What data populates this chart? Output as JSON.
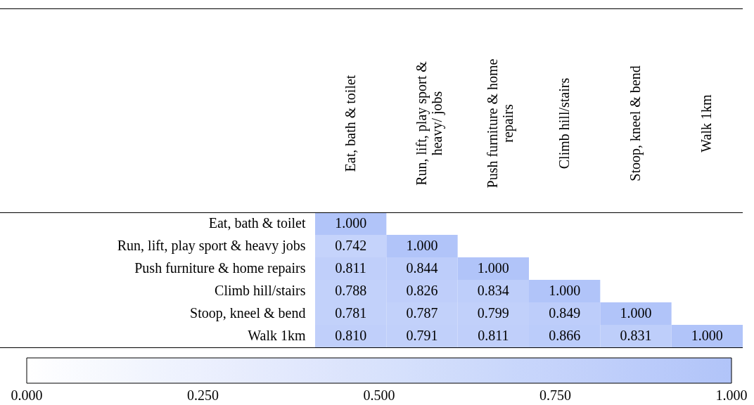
{
  "chart_data": {
    "type": "heatmap",
    "categories": [
      "Eat, bath & toilet",
      "Run, lift, play sport & heavy/ jobs",
      "Push furniture & home repairs",
      "Climb hill/stairs",
      "Stoop, kneel & bend",
      "Walk 1km"
    ],
    "y_categories": [
      "Eat, bath & toilet",
      "Run, lift, play sport & heavy jobs",
      "Push furniture & home repairs",
      "Climb hill/stairs",
      "Stoop, kneel & bend",
      "Walk 1km"
    ],
    "cells": [
      [
        1,
        null,
        null,
        null,
        null,
        null
      ],
      [
        0.742,
        1,
        null,
        null,
        null,
        null
      ],
      [
        0.811,
        0.844,
        1,
        null,
        null,
        null
      ],
      [
        0.788,
        0.826,
        0.834,
        1,
        null,
        null
      ],
      [
        0.781,
        0.787,
        0.799,
        0.849,
        1,
        null
      ],
      [
        0.81,
        0.791,
        0.811,
        0.866,
        0.831,
        1
      ]
    ],
    "cell_labels": [
      [
        "1.000",
        null,
        null,
        null,
        null,
        null
      ],
      [
        "0.742",
        "1.000",
        null,
        null,
        null,
        null
      ],
      [
        "0.811",
        "0.844",
        "1.000",
        null,
        null,
        null
      ],
      [
        "0.788",
        "0.826",
        "0.834",
        "1.000",
        null,
        null
      ],
      [
        "0.781",
        "0.787",
        "0.799",
        "0.849",
        "1.000",
        null
      ],
      [
        "0.810",
        "0.791",
        "0.811",
        "0.866",
        "0.831",
        "1.000"
      ]
    ],
    "clim": [
      0,
      1
    ],
    "cticks": [
      {
        "value": 0,
        "label": "0.000"
      },
      {
        "value": 0.25,
        "label": "0.250"
      },
      {
        "value": 0.5,
        "label": "0.500"
      },
      {
        "value": 0.75,
        "label": "0.750"
      },
      {
        "value": 1,
        "label": "1.000"
      }
    ]
  }
}
